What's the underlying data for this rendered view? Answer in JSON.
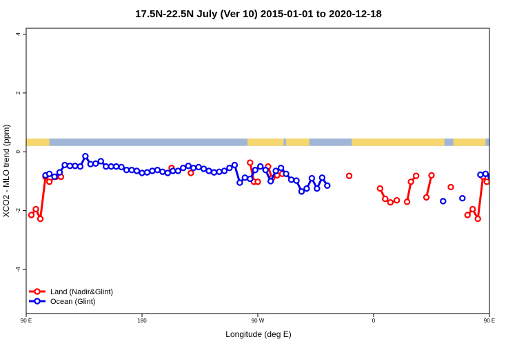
{
  "chart_data": {
    "type": "line",
    "title": "17.5N-22.5N July (Ver 10)   2015-01-01 to 2020-12-18",
    "xlabel": "Longitude (deg E)",
    "ylabel": "XCO2 - MLO trend (ppm)",
    "xlim": [
      90,
      450
    ],
    "ylim": [
      -5.5,
      4.2
    ],
    "x_ticks": [
      {
        "value": 90,
        "label": "90 E"
      },
      {
        "value": 180,
        "label": "180"
      },
      {
        "value": 270,
        "label": "90 W"
      },
      {
        "value": 360,
        "label": "0"
      },
      {
        "value": 450,
        "label": "90 E"
      }
    ],
    "x_ticks_extra_labels": [
      {
        "value": 540,
        "label": "180"
      }
    ],
    "y_ticks": [
      {
        "value": 4,
        "label": "4"
      },
      {
        "value": 2,
        "label": "2"
      },
      {
        "value": 0,
        "label": "0"
      },
      {
        "value": -2,
        "label": "-2"
      },
      {
        "value": -4,
        "label": "-4"
      }
    ],
    "legend_position": "bottom-left",
    "colors": {
      "land": "#ff0000",
      "ocean": "#0000ee",
      "land_strip": "#f5d76e",
      "ocean_strip": "#9fb6d6"
    },
    "landmask_strip": {
      "y_range": [
        0.2,
        0.45
      ],
      "land_segments": [
        [
          90,
          108
        ],
        [
          262,
          290
        ],
        [
          292,
          302
        ],
        [
          302,
          310
        ],
        [
          343,
          415
        ],
        [
          422,
          447
        ]
      ]
    },
    "series": [
      {
        "name": "Land (Nadir&Glint)",
        "color": "#ff0000",
        "segments": [
          [
            [
              94,
              -2.15
            ],
            [
              97.5,
              -1.95
            ],
            [
              101,
              -2.28
            ],
            [
              105,
              -0.85
            ],
            [
              108,
              -1.02
            ],
            [
              113,
              -0.85
            ],
            [
              117,
              -0.85
            ]
          ],
          [
            [
              203,
              -0.55
            ]
          ],
          [
            [
              218,
              -0.72
            ]
          ],
          [
            [
              264,
              -0.37
            ],
            [
              267,
              -1.02
            ],
            [
              270,
              -1.02
            ]
          ],
          [
            [
              278,
              -0.5
            ],
            [
              281,
              -0.9
            ],
            [
              285,
              -0.8
            ],
            [
              289,
              -0.75
            ]
          ],
          [
            [
              341,
              -0.82
            ]
          ],
          [
            [
              365,
              -1.25
            ],
            [
              369,
              -1.6
            ],
            [
              373,
              -1.72
            ],
            [
              378,
              -1.65
            ]
          ],
          [
            [
              386,
              -1.7
            ],
            [
              389,
              -1.02
            ],
            [
              393,
              -0.82
            ]
          ],
          [
            [
              401,
              -1.55
            ],
            [
              405,
              -0.8
            ]
          ],
          [
            [
              420,
              -1.2
            ]
          ],
          [
            [
              433,
              -2.15
            ],
            [
              437,
              -1.95
            ],
            [
              441,
              -2.28
            ],
            [
              445,
              -0.85
            ],
            [
              448,
              -1.02
            ]
          ]
        ]
      },
      {
        "name": "Ocean (Glint)",
        "color": "#0000ee",
        "segments": [
          [
            [
              105,
              -0.8
            ],
            [
              108,
              -0.75
            ],
            [
              112,
              -0.85
            ],
            [
              116,
              -0.7
            ],
            [
              120,
              -0.45
            ],
            [
              124,
              -0.48
            ],
            [
              128,
              -0.48
            ],
            [
              132,
              -0.5
            ],
            [
              136,
              -0.15
            ],
            [
              140,
              -0.42
            ],
            [
              144,
              -0.4
            ],
            [
              148,
              -0.32
            ],
            [
              152,
              -0.5
            ],
            [
              156,
              -0.5
            ],
            [
              160,
              -0.5
            ],
            [
              164,
              -0.52
            ],
            [
              168,
              -0.62
            ],
            [
              172,
              -0.62
            ],
            [
              176,
              -0.65
            ],
            [
              180,
              -0.72
            ],
            [
              184,
              -0.7
            ],
            [
              188,
              -0.65
            ],
            [
              192,
              -0.62
            ],
            [
              196,
              -0.68
            ],
            [
              200,
              -0.72
            ],
            [
              204,
              -0.65
            ],
            [
              208,
              -0.65
            ],
            [
              212,
              -0.55
            ],
            [
              216,
              -0.48
            ],
            [
              220,
              -0.55
            ],
            [
              224,
              -0.52
            ],
            [
              228,
              -0.58
            ],
            [
              232,
              -0.65
            ],
            [
              236,
              -0.7
            ],
            [
              240,
              -0.68
            ],
            [
              244,
              -0.65
            ]
          ],
          [
            [
              248,
              -0.55
            ],
            [
              252,
              -0.45
            ],
            [
              256,
              -1.05
            ],
            [
              260,
              -0.88
            ],
            [
              264,
              -0.92
            ],
            [
              268,
              -0.62
            ],
            [
              272,
              -0.5
            ],
            [
              276,
              -0.62
            ],
            [
              280,
              -1.0
            ],
            [
              284,
              -0.65
            ],
            [
              288,
              -0.55
            ],
            [
              292,
              -0.75
            ],
            [
              296,
              -0.95
            ],
            [
              300,
              -0.98
            ],
            [
              304,
              -1.35
            ],
            [
              308,
              -1.25
            ],
            [
              312,
              -0.9
            ],
            [
              316,
              -1.25
            ],
            [
              320,
              -0.88
            ],
            [
              324,
              -1.15
            ]
          ],
          [
            [
              414,
              -1.68
            ]
          ],
          [
            [
              429,
              -1.58
            ]
          ],
          [
            [
              443,
              -0.78
            ],
            [
              447,
              -0.75
            ],
            [
              451,
              -0.85
            ],
            [
              455,
              -0.7
            ],
            [
              459,
              -0.45
            ],
            [
              463,
              -0.48
            ],
            [
              467,
              -0.48
            ],
            [
              471,
              -0.5
            ],
            [
              475,
              -0.15
            ],
            [
              479,
              -0.42
            ],
            [
              483,
              -0.4
            ],
            [
              487,
              -0.32
            ],
            [
              491,
              -0.5
            ],
            [
              495,
              -0.5
            ],
            [
              499,
              -0.5
            ]
          ]
        ]
      }
    ]
  }
}
